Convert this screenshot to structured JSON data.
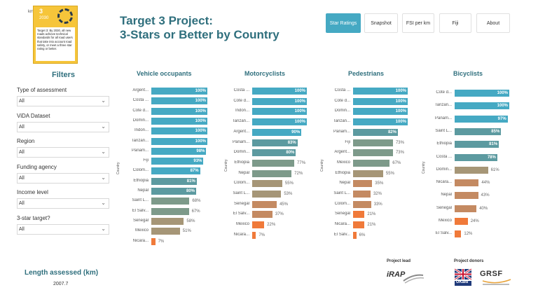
{
  "header": {
    "badge": {
      "number": "3",
      "year": "2030",
      "text": "Target 3: By 2030, all new roads achieve technical standards for all road users that take into account road safety, or meet a three star rating or better.",
      "km_tag": "km"
    },
    "title_line1": "Target 3 Project:",
    "title_line2": "3-Stars or Better by Country"
  },
  "nav": [
    {
      "label": "Star Ratings",
      "active": true
    },
    {
      "label": "Snapshot",
      "active": false
    },
    {
      "label": "FSI per km",
      "active": false
    },
    {
      "label": "Fiji",
      "active": false
    },
    {
      "label": "About",
      "active": false
    }
  ],
  "filters": {
    "title": "Filters",
    "items": [
      {
        "label": "Type of assessment",
        "value": "All"
      },
      {
        "label": "ViDA Dataset",
        "value": "All"
      },
      {
        "label": "Region",
        "value": "All"
      },
      {
        "label": "Funding agency",
        "value": "All"
      },
      {
        "label": "Income level",
        "value": "All"
      },
      {
        "label": "3-star target?",
        "value": "All"
      }
    ]
  },
  "length": {
    "title": "Length assessed (km)",
    "value": "2007.7"
  },
  "footer": {
    "lead_label": "Project lead",
    "donor_label": "Project donors",
    "irap_text": "iRAP",
    "ukaid_text": "UKaid",
    "grsf_text": "GRSF"
  },
  "colors": {
    "teal": "#45a9c3",
    "teal_mid": "#5c9aa0",
    "grey_green": "#7d9a8a",
    "khaki": "#a69677",
    "brown": "#c48a62",
    "orange": "#e9834f",
    "orange_bright": "#f07a3a"
  },
  "chart_data": [
    {
      "type": "bar",
      "title": "Vehicle occupants",
      "ylabel": "Country",
      "categories": [
        "Argent...",
        "Costa ...",
        "Cote d...",
        "Domin...",
        "Indon...",
        "Tanzan...",
        "Panam...",
        "Fiji",
        "Colom...",
        "Ethiopia",
        "Nepal",
        "Saint L...",
        "El Salv...",
        "Senegal",
        "Mexico",
        "Nicara..."
      ],
      "values": [
        100,
        100,
        100,
        100,
        100,
        100,
        98,
        93,
        87,
        81,
        80,
        68,
        67,
        58,
        51,
        7
      ],
      "labels": [
        "100%",
        "100%",
        "100%",
        "100%",
        "100%",
        "100%",
        "98%",
        "93%",
        "87%",
        "81%",
        "80%",
        "68%",
        "67%",
        "58%",
        "51%",
        "7%"
      ]
    },
    {
      "type": "bar",
      "title": "Motorcyclists",
      "ylabel": "Country",
      "categories": [
        "Costa ...",
        "Cote d...",
        "Indon...",
        "Tanzan...",
        "Argent...",
        "Panam...",
        "Domin...",
        "Ethiopia",
        "Nepal",
        "Colom...",
        "Saint L...",
        "Senegal",
        "El Salv...",
        "Mexico",
        "Nicara..."
      ],
      "values": [
        100,
        100,
        100,
        100,
        90,
        83,
        80,
        77,
        72,
        55,
        53,
        45,
        37,
        22,
        7
      ],
      "labels": [
        "100%",
        "100%",
        "100%",
        "100%",
        "90%",
        "83%",
        "80%",
        "77%",
        "72%",
        "55%",
        "53%",
        "45%",
        "37%",
        "22%",
        "7%"
      ]
    },
    {
      "type": "bar",
      "title": "Pedestrians",
      "ylabel": "Country",
      "categories": [
        "Costa ...",
        "Cote d...",
        "Domin...",
        "Tanzan...",
        "Panam...",
        "Fiji",
        "Argent...",
        "Mexico",
        "Ethiopia",
        "Nepal",
        "Saint L...",
        "Colom...",
        "Senegal",
        "Nicara...",
        "El Salv..."
      ],
      "values": [
        100,
        100,
        100,
        100,
        82,
        73,
        73,
        67,
        55,
        35,
        32,
        33,
        21,
        21,
        6
      ],
      "labels": [
        "100%",
        "100%",
        "100%",
        "100%",
        "82%",
        "73%",
        "73%",
        "67%",
        "55%",
        "35%",
        "32%",
        "33%",
        "21%",
        "21%",
        "6%"
      ]
    },
    {
      "type": "bar",
      "title": "Bicyclists",
      "ylabel": "Country",
      "categories": [
        "Cote d...",
        "Tanzan...",
        "Panam...",
        "Saint L...",
        "Ethiopia",
        "Costa ...",
        "Domin...",
        "Nicara...",
        "Nepal",
        "Senegal",
        "Mexico",
        "El Salv..."
      ],
      "values": [
        100,
        100,
        97,
        85,
        81,
        78,
        61,
        44,
        43,
        40,
        24,
        12
      ],
      "labels": [
        "100%",
        "100%",
        "97%",
        "85%",
        "81%",
        "78%",
        "61%",
        "44%",
        "43%",
        "40%",
        "24%",
        "12%"
      ]
    }
  ]
}
